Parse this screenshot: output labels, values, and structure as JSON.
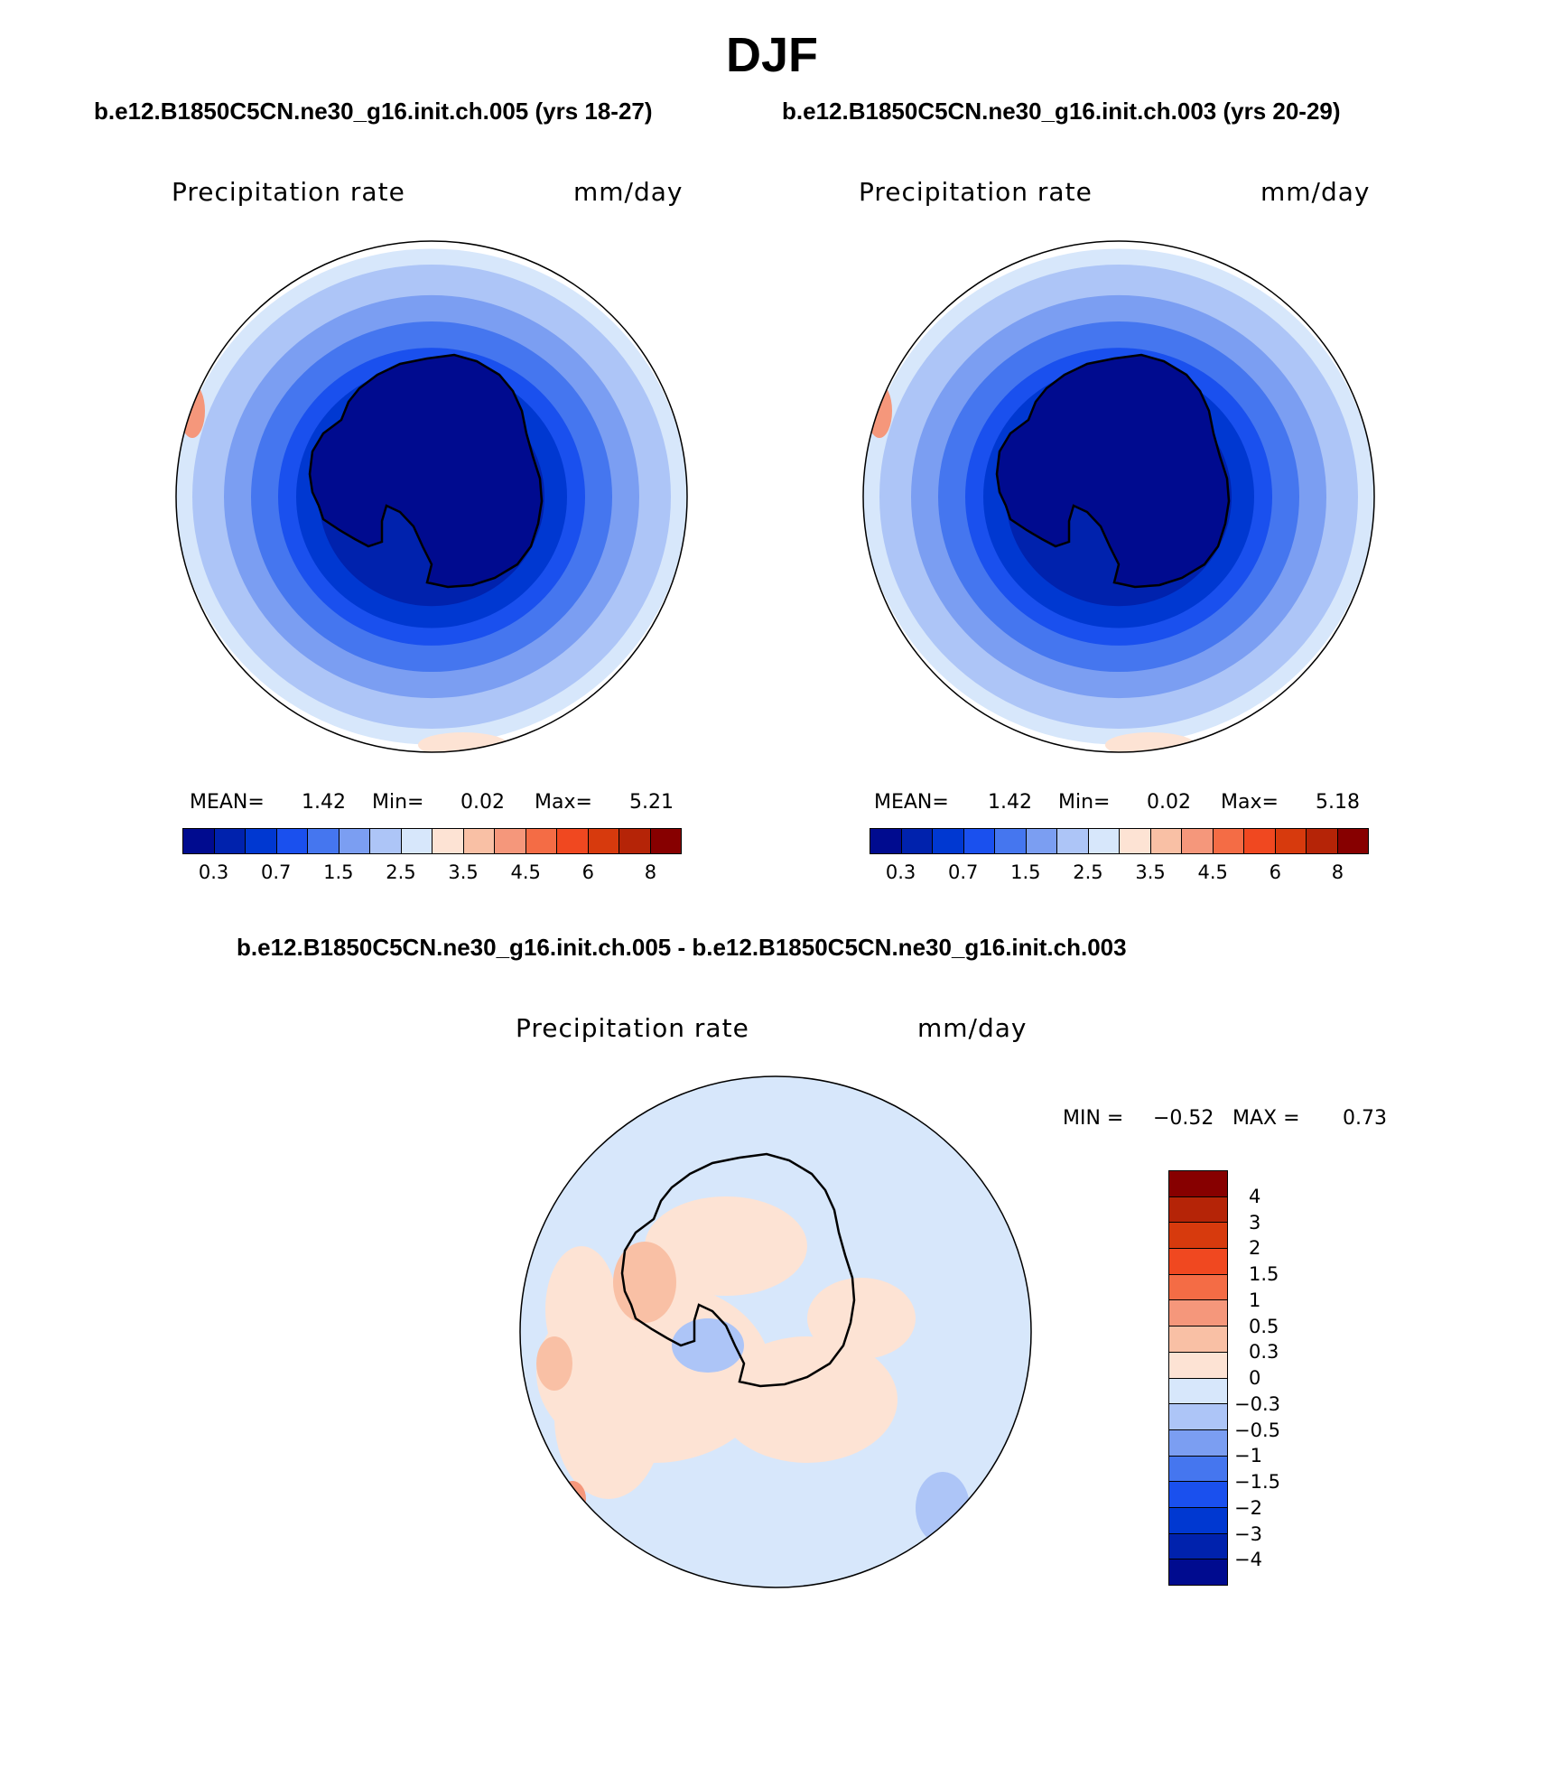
{
  "header": {
    "title": "DJF",
    "case_a": "b.e12.B1850C5CN.ne30_g16.init.ch.005 (yrs 18-27)",
    "case_b": "b.e12.B1850C5CN.ne30_g16.init.ch.003 (yrs 20-29)",
    "diff_title": "b.e12.B1850C5CN.ne30_g16.init.ch.005 - b.e12.B1850C5CN.ne30_g16.init.ch.003"
  },
  "colors": {
    "abs_levels": [
      "#000b8f",
      "#0022ad",
      "#0038d1",
      "#1a50ee",
      "#4576ef",
      "#7b9ef2",
      "#adc5f7",
      "#d7e7fb",
      "#fde3d4",
      "#f9c0a5",
      "#f5977b",
      "#f46c45",
      "#f04820",
      "#d73a0d",
      "#b52407",
      "#870000"
    ],
    "diff_levels": [
      "#000b8f",
      "#0022ad",
      "#0038d1",
      "#1a50ee",
      "#4576ef",
      "#7b9ef2",
      "#adc5f7",
      "#d7e7fb",
      "#fde3d4",
      "#f9c0a5",
      "#f5977b",
      "#f46c45",
      "#f04820",
      "#d73a0d",
      "#b52407",
      "#870000"
    ],
    "coast": "#000000"
  },
  "panels": [
    {
      "label": "Precipitation rate",
      "units": "mm/day",
      "stats": {
        "mean_label": "MEAN=",
        "mean": "1.42",
        "min_label": "Min=",
        "min": "0.02",
        "max_label": "Max=",
        "max": "5.21"
      }
    },
    {
      "label": "Precipitation rate",
      "units": "mm/day",
      "stats": {
        "mean_label": "MEAN=",
        "mean": "1.42",
        "min_label": "Min=",
        "min": "0.02",
        "max_label": "Max=",
        "max": "5.18"
      }
    }
  ],
  "diff_panel": {
    "label": "Precipitation rate",
    "units": "mm/day",
    "stats": {
      "min_label": "MIN =",
      "min": "−0.52",
      "max_label": "MAX =",
      "max": "0.73"
    }
  },
  "chart_data": [
    {
      "type": "heatmap",
      "projection": "south polar stereographic",
      "title": "Precipitation rate",
      "units": "mm/day",
      "case": "b.e12.B1850C5CN.ne30_g16.init.ch.005 (yrs 18-27)",
      "season": "DJF",
      "mean": 1.42,
      "min": 0.02,
      "max": 5.21,
      "colorbar_levels": [
        0.2,
        0.3,
        0.5,
        0.7,
        1,
        1.5,
        2,
        2.5,
        3,
        3.5,
        4,
        4.5,
        5,
        6,
        7,
        8
      ],
      "colorbar_tick_labels": [
        "0.3",
        "0.7",
        "1.5",
        "2.5",
        "3.5",
        "4.5",
        "6",
        "8"
      ]
    },
    {
      "type": "heatmap",
      "projection": "south polar stereographic",
      "title": "Precipitation rate",
      "units": "mm/day",
      "case": "b.e12.B1850C5CN.ne30_g16.init.ch.003 (yrs 20-29)",
      "season": "DJF",
      "mean": 1.42,
      "min": 0.02,
      "max": 5.18,
      "colorbar_levels": [
        0.2,
        0.3,
        0.5,
        0.7,
        1,
        1.5,
        2,
        2.5,
        3,
        3.5,
        4,
        4.5,
        5,
        6,
        7,
        8
      ],
      "colorbar_tick_labels": [
        "0.3",
        "0.7",
        "1.5",
        "2.5",
        "3.5",
        "4.5",
        "6",
        "8"
      ]
    },
    {
      "type": "heatmap",
      "projection": "south polar stereographic",
      "title": "Precipitation rate",
      "units": "mm/day",
      "case": "b.e12.B1850C5CN.ne30_g16.init.ch.005 - b.e12.B1850C5CN.ne30_g16.init.ch.003",
      "season": "DJF",
      "min": -0.52,
      "max": 0.73,
      "colorbar_levels": [
        -4,
        -3,
        -2,
        -1.5,
        -1,
        -0.5,
        -0.3,
        0,
        0.3,
        0.5,
        1,
        1.5,
        2,
        3,
        4
      ],
      "colorbar_tick_labels": [
        "4",
        "3",
        "2",
        "1.5",
        "1",
        "0.5",
        "0.3",
        "0",
        "−0.3",
        "−0.5",
        "−1",
        "−1.5",
        "−2",
        "−3",
        "−4"
      ]
    }
  ]
}
